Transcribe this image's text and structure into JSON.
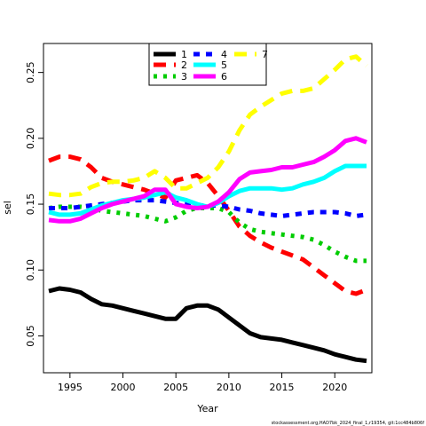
{
  "chart_data": {
    "type": "line",
    "xlabel": "Year",
    "ylabel": "sel",
    "xlim": [
      1992.5,
      2023.5
    ],
    "ylim": [
      0.022,
      0.272
    ],
    "x_ticks": [
      1995,
      2000,
      2005,
      2010,
      2015,
      2020
    ],
    "y_ticks": [
      0.05,
      0.1,
      0.15,
      0.2,
      0.25
    ],
    "y_tick_labels": [
      "0.05",
      "0.10",
      "0.15",
      "0.20",
      "0.25"
    ],
    "grid": false,
    "legend_position": "top-center",
    "x": [
      1993,
      1994,
      1995,
      1996,
      1997,
      1998,
      1999,
      2000,
      2001,
      2002,
      2003,
      2004,
      2005,
      2006,
      2007,
      2008,
      2009,
      2010,
      2011,
      2012,
      2013,
      2014,
      2015,
      2016,
      2017,
      2018,
      2019,
      2020,
      2021,
      2022,
      2023
    ],
    "series": [
      {
        "name": "1",
        "color": "#000000",
        "dash": "solid",
        "values": [
          0.084,
          0.086,
          0.085,
          0.083,
          0.078,
          0.074,
          0.073,
          0.071,
          0.069,
          0.067,
          0.065,
          0.063,
          0.063,
          0.071,
          0.073,
          0.073,
          0.07,
          0.064,
          0.058,
          0.052,
          0.049,
          0.048,
          0.047,
          0.045,
          0.043,
          0.041,
          0.039,
          0.036,
          0.034,
          0.032,
          0.031
        ]
      },
      {
        "name": "2",
        "color": "#ff0000",
        "dash": "long",
        "values": [
          0.183,
          0.186,
          0.186,
          0.184,
          0.178,
          0.17,
          0.167,
          0.165,
          0.163,
          0.161,
          0.158,
          0.155,
          0.168,
          0.17,
          0.172,
          0.166,
          0.156,
          0.145,
          0.133,
          0.126,
          0.121,
          0.117,
          0.114,
          0.111,
          0.108,
          0.102,
          0.096,
          0.09,
          0.084,
          0.082,
          0.085
        ]
      },
      {
        "name": "3",
        "color": "#00cc00",
        "dash": "dot",
        "values": [
          0.147,
          0.148,
          0.148,
          0.148,
          0.147,
          0.145,
          0.144,
          0.143,
          0.142,
          0.141,
          0.139,
          0.137,
          0.14,
          0.145,
          0.147,
          0.147,
          0.147,
          0.144,
          0.136,
          0.131,
          0.129,
          0.128,
          0.127,
          0.126,
          0.125,
          0.123,
          0.119,
          0.114,
          0.11,
          0.107,
          0.107
        ]
      },
      {
        "name": "4",
        "color": "#0000ff",
        "dash": "short",
        "values": [
          0.147,
          0.147,
          0.147,
          0.148,
          0.149,
          0.15,
          0.151,
          0.152,
          0.153,
          0.153,
          0.153,
          0.152,
          0.151,
          0.15,
          0.149,
          0.149,
          0.149,
          0.148,
          0.146,
          0.145,
          0.143,
          0.142,
          0.141,
          0.142,
          0.143,
          0.144,
          0.144,
          0.144,
          0.143,
          0.141,
          0.142
        ]
      },
      {
        "name": "5",
        "color": "#00ffff",
        "dash": "solid",
        "values": [
          0.144,
          0.142,
          0.142,
          0.143,
          0.146,
          0.149,
          0.151,
          0.153,
          0.154,
          0.155,
          0.157,
          0.159,
          0.155,
          0.153,
          0.15,
          0.148,
          0.151,
          0.156,
          0.16,
          0.162,
          0.162,
          0.162,
          0.161,
          0.162,
          0.165,
          0.167,
          0.17,
          0.175,
          0.179,
          0.179,
          0.179
        ]
      },
      {
        "name": "6",
        "color": "#ff00ff",
        "dash": "solid",
        "values": [
          0.138,
          0.137,
          0.137,
          0.139,
          0.143,
          0.147,
          0.15,
          0.152,
          0.154,
          0.156,
          0.161,
          0.161,
          0.15,
          0.148,
          0.147,
          0.148,
          0.152,
          0.159,
          0.169,
          0.174,
          0.175,
          0.176,
          0.178,
          0.178,
          0.18,
          0.182,
          0.186,
          0.191,
          0.198,
          0.2,
          0.197
        ]
      },
      {
        "name": "7",
        "color": "#ffff00",
        "dash": "long",
        "values": [
          0.158,
          0.157,
          0.157,
          0.158,
          0.163,
          0.166,
          0.167,
          0.167,
          0.168,
          0.17,
          0.175,
          0.17,
          0.162,
          0.162,
          0.166,
          0.17,
          0.178,
          0.19,
          0.206,
          0.218,
          0.224,
          0.229,
          0.234,
          0.236,
          0.236,
          0.238,
          0.245,
          0.252,
          0.26,
          0.262,
          0.255
        ]
      }
    ]
  },
  "footnote": "stockassessment.org,HAD7bk_2024_final_1,r19354, git:1cc484b806f"
}
